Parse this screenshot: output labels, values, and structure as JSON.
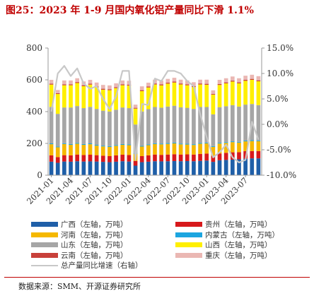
{
  "title": "图25：2023 年 1-9 月国内氧化铝产量同比下滑 1.1%",
  "source": "数据来源：SMM、开源证券研究所",
  "chart_data": {
    "type": "bar",
    "stacked": true,
    "x": [
      "2021-01",
      "2021-02",
      "2021-03",
      "2021-04",
      "2021-05",
      "2021-06",
      "2021-07",
      "2021-08",
      "2021-09",
      "2021-10",
      "2021-11",
      "2021-12",
      "2022-01",
      "2022-02",
      "2022-03",
      "2022-04",
      "2022-05",
      "2022-06",
      "2022-07",
      "2022-08",
      "2022-09",
      "2022-10",
      "2022-11",
      "2022-12",
      "2023-01",
      "2023-02",
      "2023-03",
      "2023-04",
      "2023-05",
      "2023-06",
      "2023-07",
      "2023-08",
      "2023-09"
    ],
    "x_tick_labels": [
      "2021-01",
      "2021-04",
      "2021-07",
      "2021-10",
      "2022-01",
      "2022-04",
      "2022-07",
      "2022-10",
      "2023-01",
      "2023-04",
      "2023-07"
    ],
    "y_left": {
      "range": [
        0,
        800
      ],
      "ticks": [
        "0",
        "200",
        "400",
        "600",
        "800"
      ]
    },
    "y_right": {
      "range": [
        -10,
        15
      ],
      "ticks": [
        "-10.0%",
        "-5.0%",
        "0.0%",
        "5.0%",
        "10.0%",
        "15.0%"
      ]
    },
    "series": [
      {
        "name": "广西（左轴，万吨）",
        "color": "#1f5fa8",
        "axis": "left",
        "values": [
          85,
          78,
          86,
          85,
          88,
          86,
          87,
          86,
          84,
          82,
          85,
          88,
          86,
          60,
          82,
          85,
          88,
          87,
          88,
          89,
          88,
          89,
          88,
          90,
          92,
          84,
          94,
          96,
          98,
          100,
          104,
          106,
          106
        ]
      },
      {
        "name": "贵州（左轴，万吨）",
        "color": "#d7191c",
        "axis": "left",
        "values": [
          40,
          36,
          40,
          40,
          42,
          41,
          42,
          40,
          39,
          38,
          40,
          41,
          41,
          30,
          38,
          40,
          42,
          41,
          42,
          43,
          42,
          42,
          42,
          44,
          44,
          38,
          43,
          45,
          46,
          45,
          47,
          46,
          46
        ]
      },
      {
        "name": "河南（左轴，万吨）",
        "color": "#f5b800",
        "axis": "left",
        "values": [
          70,
          62,
          70,
          66,
          68,
          64,
          66,
          60,
          58,
          58,
          60,
          62,
          62,
          45,
          60,
          64,
          66,
          66,
          67,
          68,
          64,
          62,
          60,
          64,
          64,
          56,
          62,
          62,
          64,
          60,
          62,
          63,
          62
        ]
      },
      {
        "name": "内蒙古（左轴，万吨）",
        "color": "#1ca5e0",
        "axis": "left",
        "values": [
          5,
          5,
          5,
          5,
          5,
          5,
          5,
          5,
          5,
          5,
          5,
          5,
          5,
          4,
          5,
          5,
          5,
          5,
          5,
          5,
          5,
          5,
          5,
          5,
          5,
          5,
          5,
          5,
          5,
          5,
          5,
          5,
          5
        ]
      },
      {
        "name": "山东（左轴，万吨）",
        "color": "#a6a6a6",
        "axis": "left",
        "values": [
          230,
          205,
          225,
          230,
          232,
          226,
          230,
          226,
          220,
          218,
          222,
          230,
          228,
          180,
          216,
          222,
          228,
          226,
          230,
          232,
          228,
          226,
          222,
          226,
          224,
          200,
          224,
          226,
          228,
          222,
          226,
          228,
          222
        ]
      },
      {
        "name": "山西（左轴，万吨）",
        "color": "#ffef00",
        "axis": "left",
        "values": [
          140,
          125,
          140,
          140,
          145,
          138,
          140,
          136,
          132,
          134,
          136,
          140,
          142,
          100,
          128,
          136,
          142,
          140,
          144,
          146,
          144,
          142,
          138,
          142,
          140,
          124,
          140,
          144,
          148,
          146,
          150,
          152,
          150
        ]
      },
      {
        "name": "云南（左轴，万吨）",
        "color": "#c8403a",
        "axis": "left",
        "values": [
          6,
          5,
          6,
          6,
          6,
          6,
          6,
          6,
          6,
          6,
          6,
          6,
          6,
          5,
          6,
          6,
          6,
          6,
          6,
          6,
          6,
          6,
          6,
          6,
          6,
          5,
          6,
          6,
          6,
          6,
          6,
          6,
          6
        ]
      },
      {
        "name": "重庆（左轴，万吨）",
        "color": "#eab7b3",
        "axis": "left",
        "values": [
          24,
          20,
          24,
          24,
          24,
          24,
          24,
          24,
          24,
          24,
          24,
          24,
          24,
          20,
          24,
          24,
          24,
          24,
          24,
          24,
          24,
          24,
          24,
          24,
          26,
          22,
          26,
          26,
          26,
          26,
          26,
          26,
          26
        ]
      },
      {
        "name": "总产量同比增速（右轴）",
        "color": "#c8c8c8",
        "axis": "right",
        "type": "line",
        "values": [
          2.5,
          10.0,
          11.5,
          9.5,
          11.0,
          8.0,
          7.0,
          7.5,
          5.0,
          3.0,
          5.5,
          10.5,
          10.5,
          -7.0,
          4.0,
          3.8,
          9.0,
          8.5,
          10.5,
          10.5,
          10.0,
          8.5,
          7.5,
          2.0,
          -2.5,
          -6.5,
          -5.5,
          -4.0,
          -6.5,
          -7.5,
          -7.0,
          0.5,
          -3.0
        ]
      }
    ]
  }
}
